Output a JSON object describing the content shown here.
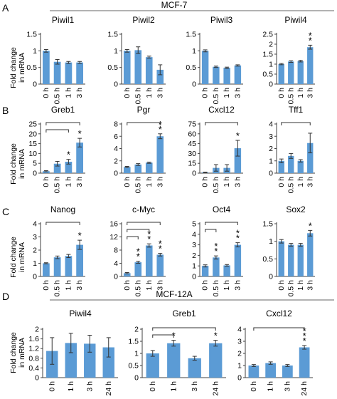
{
  "figure": {
    "group_titles": [
      "MCF-7",
      "MCF-12A"
    ],
    "row_letters": [
      "A",
      "B",
      "C",
      "D"
    ],
    "y_axis_label": [
      "Fold change",
      "in mRNA"
    ],
    "bar_color": "#5b9bd5"
  },
  "chart_data": [
    {
      "type": "bar",
      "row": "A",
      "title": "Piwil1",
      "ylabel": "Fold change in mRNA",
      "categories": [
        "0 h",
        "0.5 h",
        "1 h",
        "3 h"
      ],
      "values": [
        1.0,
        0.67,
        0.65,
        0.65
      ],
      "errors": [
        0.04,
        0.07,
        0.03,
        0.03
      ],
      "ylim": [
        0,
        1.5
      ],
      "yticks": [
        "0",
        "0.5",
        "1",
        "1.5"
      ],
      "significance": [
        "",
        "",
        "",
        ""
      ],
      "brackets": []
    },
    {
      "type": "bar",
      "row": "A",
      "title": "Piwil2",
      "categories": [
        "0 h",
        "0.5 h",
        "1 h",
        "3 h"
      ],
      "values": [
        1.0,
        1.02,
        0.81,
        0.43
      ],
      "errors": [
        0.04,
        0.1,
        0.03,
        0.15
      ],
      "ylim": [
        0,
        1.5
      ],
      "yticks": [
        "0",
        "0.5",
        "1",
        "1.5"
      ],
      "significance": [
        "",
        "",
        "",
        ""
      ],
      "brackets": []
    },
    {
      "type": "bar",
      "row": "A",
      "title": "Piwil3",
      "categories": [
        "0 h",
        "0.5 h",
        "1 h",
        "3 h"
      ],
      "values": [
        1.0,
        0.52,
        0.49,
        0.56
      ],
      "errors": [
        0.03,
        0.02,
        0.02,
        0.02
      ],
      "ylim": [
        0,
        1.5
      ],
      "yticks": [
        "0",
        "0.5",
        "1",
        "1.5"
      ],
      "significance": [
        "",
        "",
        "",
        ""
      ],
      "brackets": []
    },
    {
      "type": "bar",
      "row": "A",
      "title": "Piwil4",
      "categories": [
        "0 h",
        "0.5 h",
        "1 h",
        "3 h"
      ],
      "values": [
        1.0,
        1.13,
        1.15,
        1.85
      ],
      "errors": [
        0.03,
        0.04,
        0.04,
        0.1
      ],
      "ylim": [
        0,
        2.5
      ],
      "yticks": [
        "0",
        "0.5",
        "1",
        "1.5",
        "2",
        "2.5"
      ],
      "significance": [
        "",
        "",
        "",
        "**"
      ],
      "brackets": []
    },
    {
      "type": "bar",
      "row": "B",
      "title": "Greb1",
      "ylabel": "Fold change in mRNA",
      "categories": [
        "0 h",
        "0.5 h",
        "1 h",
        "3 h"
      ],
      "values": [
        1.0,
        4.8,
        5.8,
        15.5
      ],
      "errors": [
        0.3,
        1.2,
        1.2,
        2.2
      ],
      "ylim": [
        0,
        25
      ],
      "yticks": [
        "0",
        "5",
        "10",
        "15",
        "20",
        "25"
      ],
      "significance": [
        "",
        "",
        "*",
        "*"
      ],
      "brackets": [
        [
          0,
          2
        ],
        [
          0,
          3
        ]
      ]
    },
    {
      "type": "bar",
      "row": "B",
      "title": "Pgr",
      "categories": [
        "0 h",
        "0.5 h",
        "1 h",
        "3 h"
      ],
      "values": [
        1.0,
        1.4,
        1.7,
        6.0
      ],
      "errors": [
        0.1,
        0.15,
        0.1,
        0.4
      ],
      "ylim": [
        0,
        8
      ],
      "yticks": [
        "0",
        "2",
        "4",
        "6",
        "8"
      ],
      "significance": [
        "",
        "",
        "",
        "**"
      ],
      "brackets": [
        [
          0,
          3
        ]
      ]
    },
    {
      "type": "bar",
      "row": "B",
      "title": "Cxcl12",
      "categories": [
        "0 h",
        "0.5 h",
        "1 h",
        "3 h"
      ],
      "values": [
        1.0,
        8.0,
        8.0,
        38.0
      ],
      "errors": [
        0.5,
        5.0,
        5.0,
        12.0
      ],
      "ylim": [
        0,
        75
      ],
      "yticks": [
        "0",
        "15",
        "30",
        "45",
        "60",
        "75"
      ],
      "significance": [
        "",
        "",
        "",
        "*"
      ],
      "brackets": [
        [
          0,
          3
        ]
      ]
    },
    {
      "type": "bar",
      "row": "B",
      "title": "Tff1",
      "categories": [
        "0 h",
        "0.5 h",
        "1 h",
        "3 h"
      ],
      "values": [
        1.0,
        1.4,
        1.0,
        2.45
      ],
      "errors": [
        0.15,
        0.2,
        0.1,
        0.8
      ],
      "ylim": [
        0,
        4
      ],
      "yticks": [
        "0",
        "1",
        "2",
        "3",
        "4"
      ],
      "significance": [
        "",
        "",
        "",
        ""
      ],
      "brackets": [
        [
          0,
          3
        ]
      ]
    },
    {
      "type": "bar",
      "row": "C",
      "title": "Nanog",
      "ylabel": "Fold change in mRNA",
      "categories": [
        "0 h",
        "0.5 h",
        "1 h",
        "3 h"
      ],
      "values": [
        1.0,
        1.45,
        1.55,
        2.4
      ],
      "errors": [
        0.04,
        0.1,
        0.12,
        0.35
      ],
      "ylim": [
        0,
        4
      ],
      "yticks": [
        "0",
        "1",
        "2",
        "3",
        "4"
      ],
      "significance": [
        "",
        "",
        "",
        "*"
      ],
      "brackets": [
        [
          0,
          3
        ]
      ]
    },
    {
      "type": "bar",
      "row": "C",
      "title": "c-Myc",
      "categories": [
        "0 h",
        "0.5 h",
        "1 h",
        "3 h"
      ],
      "values": [
        1.0,
        4.3,
        9.4,
        6.6
      ],
      "errors": [
        0.2,
        0.3,
        0.5,
        0.4
      ],
      "ylim": [
        0,
        16
      ],
      "yticks": [
        "0",
        "4",
        "8",
        "12",
        "16"
      ],
      "significance": [
        "",
        "**",
        "**",
        "**"
      ],
      "brackets": [
        [
          0,
          1
        ],
        [
          0,
          2
        ],
        [
          0,
          3
        ]
      ]
    },
    {
      "type": "bar",
      "row": "C",
      "title": "Oct4",
      "categories": [
        "0 h",
        "0.5 h",
        "1 h",
        "3 h"
      ],
      "values": [
        1.0,
        1.8,
        1.05,
        3.0
      ],
      "errors": [
        0.1,
        0.15,
        0.08,
        0.2
      ],
      "ylim": [
        0,
        5
      ],
      "yticks": [
        "0",
        "1",
        "2",
        "3",
        "4",
        "5"
      ],
      "significance": [
        "",
        "**",
        "",
        "**"
      ],
      "brackets": [
        [
          0,
          1
        ],
        [
          0,
          3
        ]
      ]
    },
    {
      "type": "bar",
      "row": "C",
      "title": "Sox2",
      "categories": [
        "0 h",
        "0.5 h",
        "1 h",
        "3 h"
      ],
      "values": [
        1.0,
        0.9,
        0.9,
        1.23
      ],
      "errors": [
        0.05,
        0.04,
        0.04,
        0.08
      ],
      "ylim": [
        0,
        1.5
      ],
      "yticks": [
        "0",
        "0.5",
        "1",
        "1.5"
      ],
      "significance": [
        "",
        "",
        "",
        "*"
      ],
      "brackets": []
    },
    {
      "type": "bar",
      "row": "D",
      "title": "Piwil4",
      "ylabel": "Fold change in mRNA",
      "categories": [
        "0 h",
        "1 h",
        "3 h",
        "24 h"
      ],
      "values": [
        1.1,
        1.43,
        1.4,
        1.25
      ],
      "errors": [
        0.55,
        0.4,
        0.35,
        0.4
      ],
      "ylim": [
        0,
        2.0
      ],
      "yticks": [
        "0",
        "0.4",
        "0.8",
        "1.2",
        "1.6",
        "2"
      ],
      "significance": [
        "",
        "",
        "",
        ""
      ],
      "brackets": []
    },
    {
      "type": "bar",
      "row": "D",
      "title": "Greb1",
      "categories": [
        "0 h",
        "1 h",
        "3 h",
        "24 h"
      ],
      "values": [
        1.0,
        1.42,
        0.8,
        1.42
      ],
      "errors": [
        0.12,
        0.12,
        0.08,
        0.12
      ],
      "ylim": [
        0,
        2
      ],
      "yticks": [
        "0",
        "0.5",
        "1",
        "1.5",
        "2"
      ],
      "significance": [
        "",
        "*",
        "",
        "*"
      ],
      "brackets": [
        [
          0,
          1
        ],
        [
          0,
          3
        ]
      ]
    },
    {
      "type": "bar",
      "row": "D",
      "title": "Cxcl12",
      "categories": [
        "0 h",
        "1 h",
        "3 h",
        "24 h"
      ],
      "values": [
        1.0,
        1.2,
        1.0,
        2.5
      ],
      "errors": [
        0.08,
        0.1,
        0.08,
        0.15
      ],
      "ylim": [
        0,
        4
      ],
      "yticks": [
        "0",
        "1",
        "2",
        "3",
        "4"
      ],
      "significance": [
        "",
        "",
        "",
        "***"
      ],
      "brackets": [
        [
          0,
          3
        ]
      ]
    }
  ]
}
